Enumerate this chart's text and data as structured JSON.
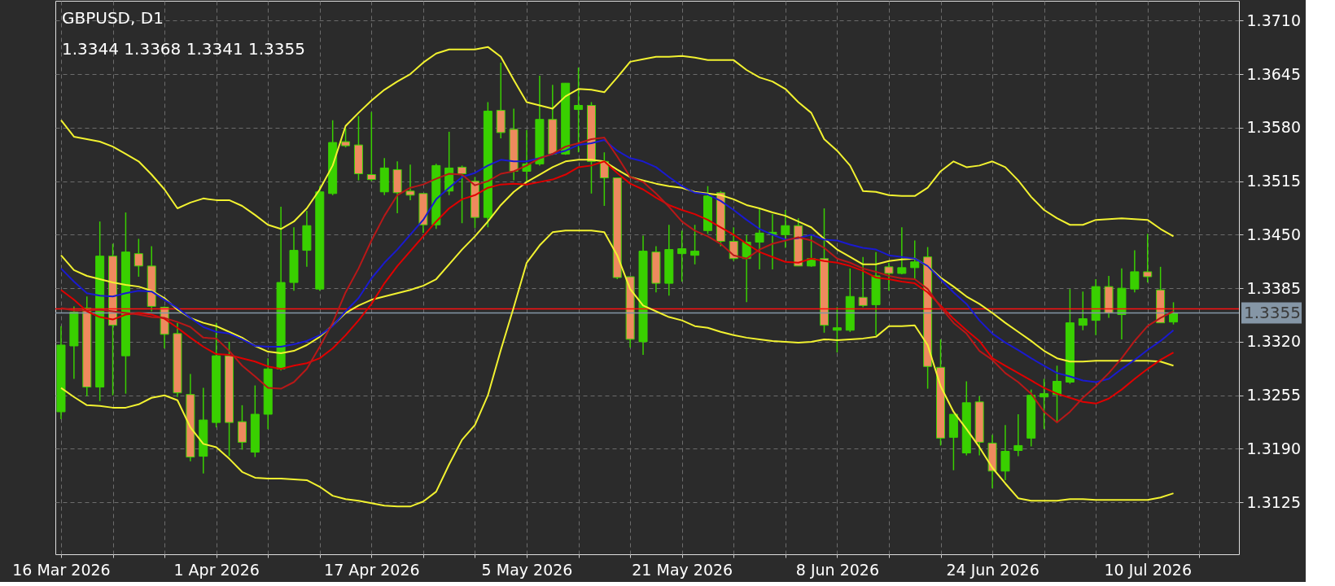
{
  "chart_data": {
    "type": "candlestick",
    "title": "GBPUSD, D1",
    "subtitle": "1.3344 1.3368 1.3341 1.3355",
    "categories": [
      "16 Mar 2026",
      null,
      null,
      null,
      null,
      null,
      null,
      null,
      null,
      null,
      null,
      null,
      "1 Apr 2026",
      null,
      null,
      null,
      null,
      null,
      null,
      null,
      null,
      null,
      null,
      null,
      "17 Apr 2026",
      null,
      null,
      null,
      null,
      null,
      null,
      null,
      null,
      null,
      null,
      null,
      "5 May 2026",
      null,
      null,
      null,
      null,
      null,
      null,
      null,
      null,
      null,
      null,
      null,
      "21 May 2026",
      null,
      null,
      null,
      null,
      null,
      null,
      null,
      null,
      null,
      null,
      null,
      "8 Jun 2026",
      null,
      null,
      null,
      null,
      null,
      null,
      null,
      null,
      null,
      null,
      null,
      "24 Jun 2026",
      null,
      null,
      null,
      null,
      null,
      null,
      null,
      null,
      null,
      null,
      null,
      "10 Jul 2026",
      null,
      null
    ],
    "ohlc": [
      [
        1.3235,
        1.3339,
        1.3226,
        1.3316
      ],
      [
        1.3315,
        1.3363,
        1.3275,
        1.3356
      ],
      [
        1.3361,
        1.3375,
        1.3254,
        1.3265
      ],
      [
        1.3265,
        1.3466,
        1.3248,
        1.3424
      ],
      [
        1.3424,
        1.3439,
        1.3255,
        1.334
      ],
      [
        1.3303,
        1.3477,
        1.3257,
        1.3429
      ],
      [
        1.3427,
        1.3445,
        1.3399,
        1.3412
      ],
      [
        1.3412,
        1.3436,
        1.3357,
        1.3363
      ],
      [
        1.3362,
        1.3363,
        1.3312,
        1.3329
      ],
      [
        1.333,
        1.3343,
        1.3253,
        1.3258
      ],
      [
        1.3256,
        1.3281,
        1.3175,
        1.318
      ],
      [
        1.3181,
        1.3264,
        1.316,
        1.3225
      ],
      [
        1.3222,
        1.3343,
        1.3216,
        1.3303
      ],
      [
        1.3303,
        1.332,
        1.3181,
        1.3222
      ],
      [
        1.3223,
        1.3243,
        1.3189,
        1.3198
      ],
      [
        1.3186,
        1.3267,
        1.318,
        1.3232
      ],
      [
        1.3232,
        1.33,
        1.3214,
        1.3287
      ],
      [
        1.3287,
        1.3484,
        1.3285,
        1.3392
      ],
      [
        1.3392,
        1.3459,
        1.3382,
        1.3431
      ],
      [
        1.3431,
        1.3479,
        1.3411,
        1.3461
      ],
      [
        1.3384,
        1.3509,
        1.3382,
        1.3502
      ],
      [
        1.35,
        1.3589,
        1.3498,
        1.3562
      ],
      [
        1.3563,
        1.3579,
        1.3556,
        1.3558
      ],
      [
        1.3559,
        1.3594,
        1.3516,
        1.3524
      ],
      [
        1.3523,
        1.3599,
        1.3515,
        1.3517
      ],
      [
        1.3502,
        1.3543,
        1.3498,
        1.3531
      ],
      [
        1.3529,
        1.3539,
        1.3476,
        1.3501
      ],
      [
        1.3503,
        1.3535,
        1.3492,
        1.3498
      ],
      [
        1.35,
        1.35,
        1.3452,
        1.3462
      ],
      [
        1.3462,
        1.3536,
        1.3457,
        1.3534
      ],
      [
        1.3503,
        1.3575,
        1.3498,
        1.3531
      ],
      [
        1.3532,
        1.3534,
        1.3464,
        1.3524
      ],
      [
        1.3515,
        1.352,
        1.3458,
        1.3471
      ],
      [
        1.3471,
        1.3611,
        1.3459,
        1.36
      ],
      [
        1.3601,
        1.3659,
        1.3567,
        1.3574
      ],
      [
        1.3578,
        1.3603,
        1.3516,
        1.3527
      ],
      [
        1.3527,
        1.3577,
        1.3514,
        1.3536
      ],
      [
        1.3536,
        1.3643,
        1.3534,
        1.359
      ],
      [
        1.359,
        1.3632,
        1.3547,
        1.3548
      ],
      [
        1.3548,
        1.3634,
        1.3547,
        1.3634
      ],
      [
        1.3602,
        1.3653,
        1.355,
        1.3607
      ],
      [
        1.3607,
        1.3611,
        1.35,
        1.3539
      ],
      [
        1.3539,
        1.355,
        1.3485,
        1.3519
      ],
      [
        1.3519,
        1.3519,
        1.3396,
        1.3398
      ],
      [
        1.3399,
        1.3399,
        1.3313,
        1.3323
      ],
      [
        1.332,
        1.3449,
        1.3304,
        1.343
      ],
      [
        1.3429,
        1.3436,
        1.338,
        1.3391
      ],
      [
        1.3391,
        1.3462,
        1.3376,
        1.3432
      ],
      [
        1.3427,
        1.3455,
        1.3393,
        1.3433
      ],
      [
        1.3425,
        1.3462,
        1.3414,
        1.343
      ],
      [
        1.3455,
        1.3509,
        1.3451,
        1.3497
      ],
      [
        1.3501,
        1.3503,
        1.3436,
        1.3442
      ],
      [
        1.3442,
        1.3459,
        1.3418,
        1.3421
      ],
      [
        1.3421,
        1.345,
        1.3368,
        1.3441
      ],
      [
        1.3441,
        1.3482,
        1.3408,
        1.3452
      ],
      [
        1.3451,
        1.3475,
        1.3408,
        1.3453
      ],
      [
        1.345,
        1.348,
        1.3434,
        1.3461
      ],
      [
        1.3461,
        1.347,
        1.3412,
        1.3412
      ],
      [
        1.3412,
        1.345,
        1.3411,
        1.3421
      ],
      [
        1.3421,
        1.3482,
        1.3331,
        1.334
      ],
      [
        1.3334,
        1.3362,
        1.3307,
        1.3337
      ],
      [
        1.3334,
        1.3409,
        1.3332,
        1.3375
      ],
      [
        1.3374,
        1.3423,
        1.3362,
        1.3364
      ],
      [
        1.3365,
        1.3429,
        1.3328,
        1.34
      ],
      [
        1.3411,
        1.3416,
        1.3382,
        1.3403
      ],
      [
        1.3403,
        1.3459,
        1.3402,
        1.341
      ],
      [
        1.341,
        1.3443,
        1.3396,
        1.3417
      ],
      [
        1.3423,
        1.3435,
        1.3263,
        1.329
      ],
      [
        1.3289,
        1.3323,
        1.3194,
        1.3203
      ],
      [
        1.3204,
        1.3232,
        1.3164,
        1.3232
      ],
      [
        1.3185,
        1.3272,
        1.3182,
        1.3246
      ],
      [
        1.3247,
        1.3254,
        1.3182,
        1.3198
      ],
      [
        1.3197,
        1.3207,
        1.3142,
        1.3163
      ],
      [
        1.3163,
        1.3219,
        1.3152,
        1.3187
      ],
      [
        1.3188,
        1.3232,
        1.3181,
        1.3194
      ],
      [
        1.3203,
        1.3262,
        1.3193,
        1.3255
      ],
      [
        1.3253,
        1.3275,
        1.3214,
        1.3257
      ],
      [
        1.3256,
        1.3291,
        1.3222,
        1.3272
      ],
      [
        1.3271,
        1.3384,
        1.3269,
        1.3343
      ],
      [
        1.334,
        1.3381,
        1.3334,
        1.3348
      ],
      [
        1.3346,
        1.3396,
        1.3328,
        1.3387
      ],
      [
        1.3387,
        1.34,
        1.3349,
        1.3355
      ],
      [
        1.3353,
        1.3409,
        1.3323,
        1.3385
      ],
      [
        1.3384,
        1.3431,
        1.338,
        1.3405
      ],
      [
        1.3405,
        1.3451,
        1.3392,
        1.3399
      ],
      [
        1.3383,
        1.3411,
        1.3343,
        1.3343
      ],
      [
        1.3344,
        1.3368,
        1.3341,
        1.3355
      ]
    ],
    "color": "#39d000",
    "colors": [
      "#39d000",
      "#39d000",
      "#ee8a5e",
      "#39d000",
      "#ee8a5e",
      "#39d000",
      "#ee8a5e",
      "#ee8a5e",
      "#ee8a5e",
      "#ee8a5e",
      "#ee8a5e",
      "#39d000",
      "#39d000",
      "#ee8a5e",
      "#ee8a5e",
      "#39d000",
      "#39d000",
      "#39d000",
      "#39d000",
      "#39d000",
      "#39d000",
      "#39d000",
      "#ee8a5e",
      "#ee8a5e",
      "#ee8a5e",
      "#39d000",
      "#ee8a5e",
      "#ee8a5e",
      "#ee8a5e",
      "#39d000",
      "#39d000",
      "#ee8a5e",
      "#ee8a5e",
      "#39d000",
      "#ee8a5e",
      "#ee8a5e",
      "#39d000",
      "#39d000",
      "#ee8a5e",
      "#39d000",
      "#39d000",
      "#ee8a5e",
      "#ee8a5e",
      "#ee8a5e",
      "#ee8a5e",
      "#39d000",
      "#ee8a5e",
      "#39d000",
      "#39d000",
      "#39d000",
      "#39d000",
      "#ee8a5e",
      "#ee8a5e",
      "#39d000",
      "#39d000",
      "#39d000",
      "#39d000",
      "#ee8a5e",
      "#39d000",
      "#ee8a5e",
      "#39d000",
      "#39d000",
      "#ee8a5e",
      "#39d000",
      "#ee8a5e",
      "#39d000",
      "#39d000",
      "#ee8a5e",
      "#ee8a5e",
      "#39d000",
      "#39d000",
      "#ee8a5e",
      "#ee8a5e",
      "#39d000",
      "#39d000",
      "#39d000",
      "#39d000",
      "#39d000",
      "#39d000",
      "#39d000",
      "#39d000",
      "#ee8a5e",
      "#39d000",
      "#39d000",
      "#ee8a5e",
      "#ee8a5e",
      "#39d000"
    ],
    "series": [
      {
        "type": "line",
        "color": "#f2f230",
        "values": [
          1.3589,
          1.3569,
          1.3566,
          1.3563,
          1.3557,
          1.3548,
          1.3539,
          1.3523,
          1.3505,
          1.3482,
          1.3489,
          1.3494,
          1.3492,
          1.3492,
          1.3485,
          1.3474,
          1.3462,
          1.3457,
          1.3466,
          1.3482,
          1.3505,
          1.3534,
          1.3582,
          1.3598,
          1.3613,
          1.3626,
          1.3636,
          1.3645,
          1.3659,
          1.367,
          1.3675,
          1.3675,
          1.3675,
          1.3678,
          1.3666,
          1.3638,
          1.3611,
          1.3607,
          1.3603,
          1.3618,
          1.3627,
          1.3626,
          1.3623,
          1.3641,
          1.366,
          1.3663,
          1.3666,
          1.3666,
          1.3667,
          1.3665,
          1.3662,
          1.3662,
          1.3662,
          1.365,
          1.3641,
          1.3636,
          1.3627,
          1.3611,
          1.3598,
          1.3566,
          1.3552,
          1.3534,
          1.3503,
          1.3502,
          1.3498,
          1.3497,
          1.3497,
          1.3507,
          1.3527,
          1.3539,
          1.3532,
          1.3534,
          1.3539,
          1.3532,
          1.3516,
          1.3496,
          1.348,
          1.347,
          1.3462,
          1.3462,
          1.3468,
          1.3469,
          1.347,
          1.3469,
          1.3468,
          1.3457,
          1.3448
        ]
      },
      {
        "type": "line",
        "color": "#f2f230",
        "values": [
          1.3425,
          1.3407,
          1.34,
          1.3396,
          1.3392,
          1.3389,
          1.3387,
          1.3382,
          1.3373,
          1.3359,
          1.3349,
          1.3343,
          1.3339,
          1.3332,
          1.3325,
          1.3315,
          1.3308,
          1.3306,
          1.3309,
          1.3316,
          1.3326,
          1.334,
          1.3355,
          1.3364,
          1.3371,
          1.3375,
          1.3379,
          1.3383,
          1.3388,
          1.3396,
          1.3414,
          1.3432,
          1.3448,
          1.3466,
          1.3486,
          1.3502,
          1.3514,
          1.3523,
          1.3532,
          1.3539,
          1.3541,
          1.3541,
          1.3539,
          1.3529,
          1.352,
          1.3516,
          1.3512,
          1.3509,
          1.3507,
          1.3502,
          1.35,
          1.3498,
          1.3493,
          1.3486,
          1.3482,
          1.3477,
          1.3473,
          1.3466,
          1.3459,
          1.3445,
          1.3432,
          1.3423,
          1.3414,
          1.3414,
          1.3418,
          1.342,
          1.3421,
          1.3412,
          1.3398,
          1.3387,
          1.3375,
          1.3366,
          1.3355,
          1.3343,
          1.3332,
          1.3321,
          1.3309,
          1.33,
          1.3296,
          1.3296,
          1.3297,
          1.3297,
          1.3297,
          1.3297,
          1.3297,
          1.3296,
          1.3291
        ]
      },
      {
        "type": "line",
        "color": "#f2f230",
        "values": [
          1.3264,
          1.3253,
          1.3243,
          1.3242,
          1.324,
          1.324,
          1.3244,
          1.3252,
          1.3255,
          1.3249,
          1.3216,
          1.3196,
          1.3192,
          1.3178,
          1.3162,
          1.3155,
          1.3154,
          1.3154,
          1.3153,
          1.3152,
          1.3144,
          1.3133,
          1.3129,
          1.3127,
          1.3124,
          1.3121,
          1.312,
          1.312,
          1.3126,
          1.3138,
          1.3171,
          1.3201,
          1.3219,
          1.3255,
          1.331,
          1.3362,
          1.3416,
          1.3437,
          1.3453,
          1.3455,
          1.3455,
          1.3455,
          1.3453,
          1.3425,
          1.3384,
          1.3364,
          1.3357,
          1.335,
          1.3346,
          1.3339,
          1.3337,
          1.3332,
          1.3328,
          1.3325,
          1.3323,
          1.3321,
          1.332,
          1.3319,
          1.332,
          1.3323,
          1.3322,
          1.3323,
          1.3324,
          1.3326,
          1.3339,
          1.3339,
          1.334,
          1.3316,
          1.3266,
          1.3235,
          1.3214,
          1.3192,
          1.3167,
          1.3148,
          1.313,
          1.3127,
          1.3127,
          1.3127,
          1.3129,
          1.3129,
          1.3128,
          1.3128,
          1.3128,
          1.3128,
          1.3128,
          1.3131,
          1.3136
        ]
      },
      {
        "type": "line",
        "color": "#1a1ad0",
        "values": [
          1.3409,
          1.3393,
          1.3379,
          1.3376,
          1.3375,
          1.3379,
          1.3382,
          1.3381,
          1.3371,
          1.3361,
          1.3349,
          1.3338,
          1.3332,
          1.333,
          1.3323,
          1.3315,
          1.3314,
          1.3314,
          1.3317,
          1.3321,
          1.3328,
          1.3339,
          1.3357,
          1.3373,
          1.3397,
          1.3416,
          1.3432,
          1.345,
          1.3468,
          1.3493,
          1.3507,
          1.352,
          1.3525,
          1.3534,
          1.3541,
          1.3539,
          1.3539,
          1.3543,
          1.3548,
          1.3552,
          1.3559,
          1.3561,
          1.3565,
          1.3552,
          1.3543,
          1.3539,
          1.3532,
          1.352,
          1.3509,
          1.3501,
          1.3499,
          1.3491,
          1.348,
          1.3468,
          1.3457,
          1.345,
          1.3444,
          1.3446,
          1.345,
          1.3444,
          1.3443,
          1.3438,
          1.3434,
          1.3432,
          1.3425,
          1.3423,
          1.3421,
          1.3412,
          1.3396,
          1.338,
          1.3366,
          1.3346,
          1.333,
          1.3319,
          1.331,
          1.33,
          1.3291,
          1.3282,
          1.3278,
          1.3273,
          1.3271,
          1.3275,
          1.3287,
          1.3298,
          1.331,
          1.3321,
          1.3334
        ]
      },
      {
        "type": "line",
        "color": "#e00000",
        "values": [
          1.3383,
          1.3371,
          1.3357,
          1.335,
          1.3347,
          1.3353,
          1.3355,
          1.3353,
          1.3348,
          1.3337,
          1.3325,
          1.3314,
          1.3305,
          1.3304,
          1.33,
          1.3296,
          1.329,
          1.3287,
          1.3291,
          1.3294,
          1.33,
          1.3312,
          1.3328,
          1.3346,
          1.3366,
          1.3391,
          1.3412,
          1.343,
          1.3448,
          1.3466,
          1.3482,
          1.3493,
          1.3498,
          1.3507,
          1.3511,
          1.3512,
          1.3511,
          1.3514,
          1.3517,
          1.3523,
          1.3532,
          1.3534,
          1.3539,
          1.3525,
          1.3512,
          1.3505,
          1.3495,
          1.3486,
          1.348,
          1.3475,
          1.3468,
          1.3459,
          1.345,
          1.3439,
          1.3429,
          1.3423,
          1.3417,
          1.3416,
          1.3421,
          1.3418,
          1.3416,
          1.3412,
          1.3406,
          1.3398,
          1.3396,
          1.3393,
          1.3391,
          1.338,
          1.3364,
          1.3348,
          1.3334,
          1.3321,
          1.33,
          1.3291,
          1.3282,
          1.3273,
          1.3264,
          1.3257,
          1.3252,
          1.3247,
          1.3245,
          1.3251,
          1.3262,
          1.3275,
          1.3287,
          1.3298,
          1.3307
        ]
      },
      {
        "type": "line",
        "color": "#b81818",
        "values": [
          1.3361,
          1.3358,
          1.3358,
          1.3359,
          1.3357,
          1.3355,
          1.3353,
          1.335,
          1.3349,
          1.3344,
          1.3338,
          1.3325,
          1.3324,
          1.3309,
          1.3291,
          1.3278,
          1.3264,
          1.3263,
          1.3271,
          1.3287,
          1.3314,
          1.3343,
          1.338,
          1.3409,
          1.3443,
          1.3473,
          1.3498,
          1.3507,
          1.3511,
          1.3518,
          1.3524,
          1.3523,
          1.351,
          1.3515,
          1.3524,
          1.3527,
          1.3534,
          1.3543,
          1.3548,
          1.3557,
          1.3561,
          1.3566,
          1.3568,
          1.3545,
          1.352,
          1.3514,
          1.35,
          1.3484,
          1.3466,
          1.3455,
          1.3448,
          1.3439,
          1.3425,
          1.3421,
          1.3432,
          1.3439,
          1.3443,
          1.3447,
          1.3443,
          1.3434,
          1.3421,
          1.3416,
          1.3409,
          1.3405,
          1.34,
          1.3397,
          1.3396,
          1.3384,
          1.3362,
          1.3343,
          1.333,
          1.3309,
          1.3298,
          1.3282,
          1.3271,
          1.3257,
          1.3235,
          1.3222,
          1.3235,
          1.3252,
          1.3266,
          1.3282,
          1.33,
          1.3321,
          1.3339,
          1.3349,
          1.3357
        ]
      }
    ],
    "ylim": [
      1.3062,
      1.3734
    ],
    "yticks": [
      {
        "value": 1.3125,
        "label": "1.3125"
      },
      {
        "value": 1.319,
        "label": "1.3190"
      },
      1.3255,
      {
        "value": 1.332,
        "label": "1.3320"
      },
      1.3385,
      {
        "value": 1.345,
        "label": "1.3450"
      },
      1.3515,
      {
        "value": 1.358,
        "label": "1.3580"
      },
      1.3645,
      {
        "value": 1.371,
        "label": "1.3710"
      }
    ],
    "ref_lines": [
      {
        "axis": "y",
        "value": 1.336,
        "label": null,
        "color": "#ff1010"
      },
      {
        "axis": "y",
        "value": 1.3355,
        "label": "1.3355",
        "color": "#8596a6"
      }
    ],
    "grid": true
  }
}
